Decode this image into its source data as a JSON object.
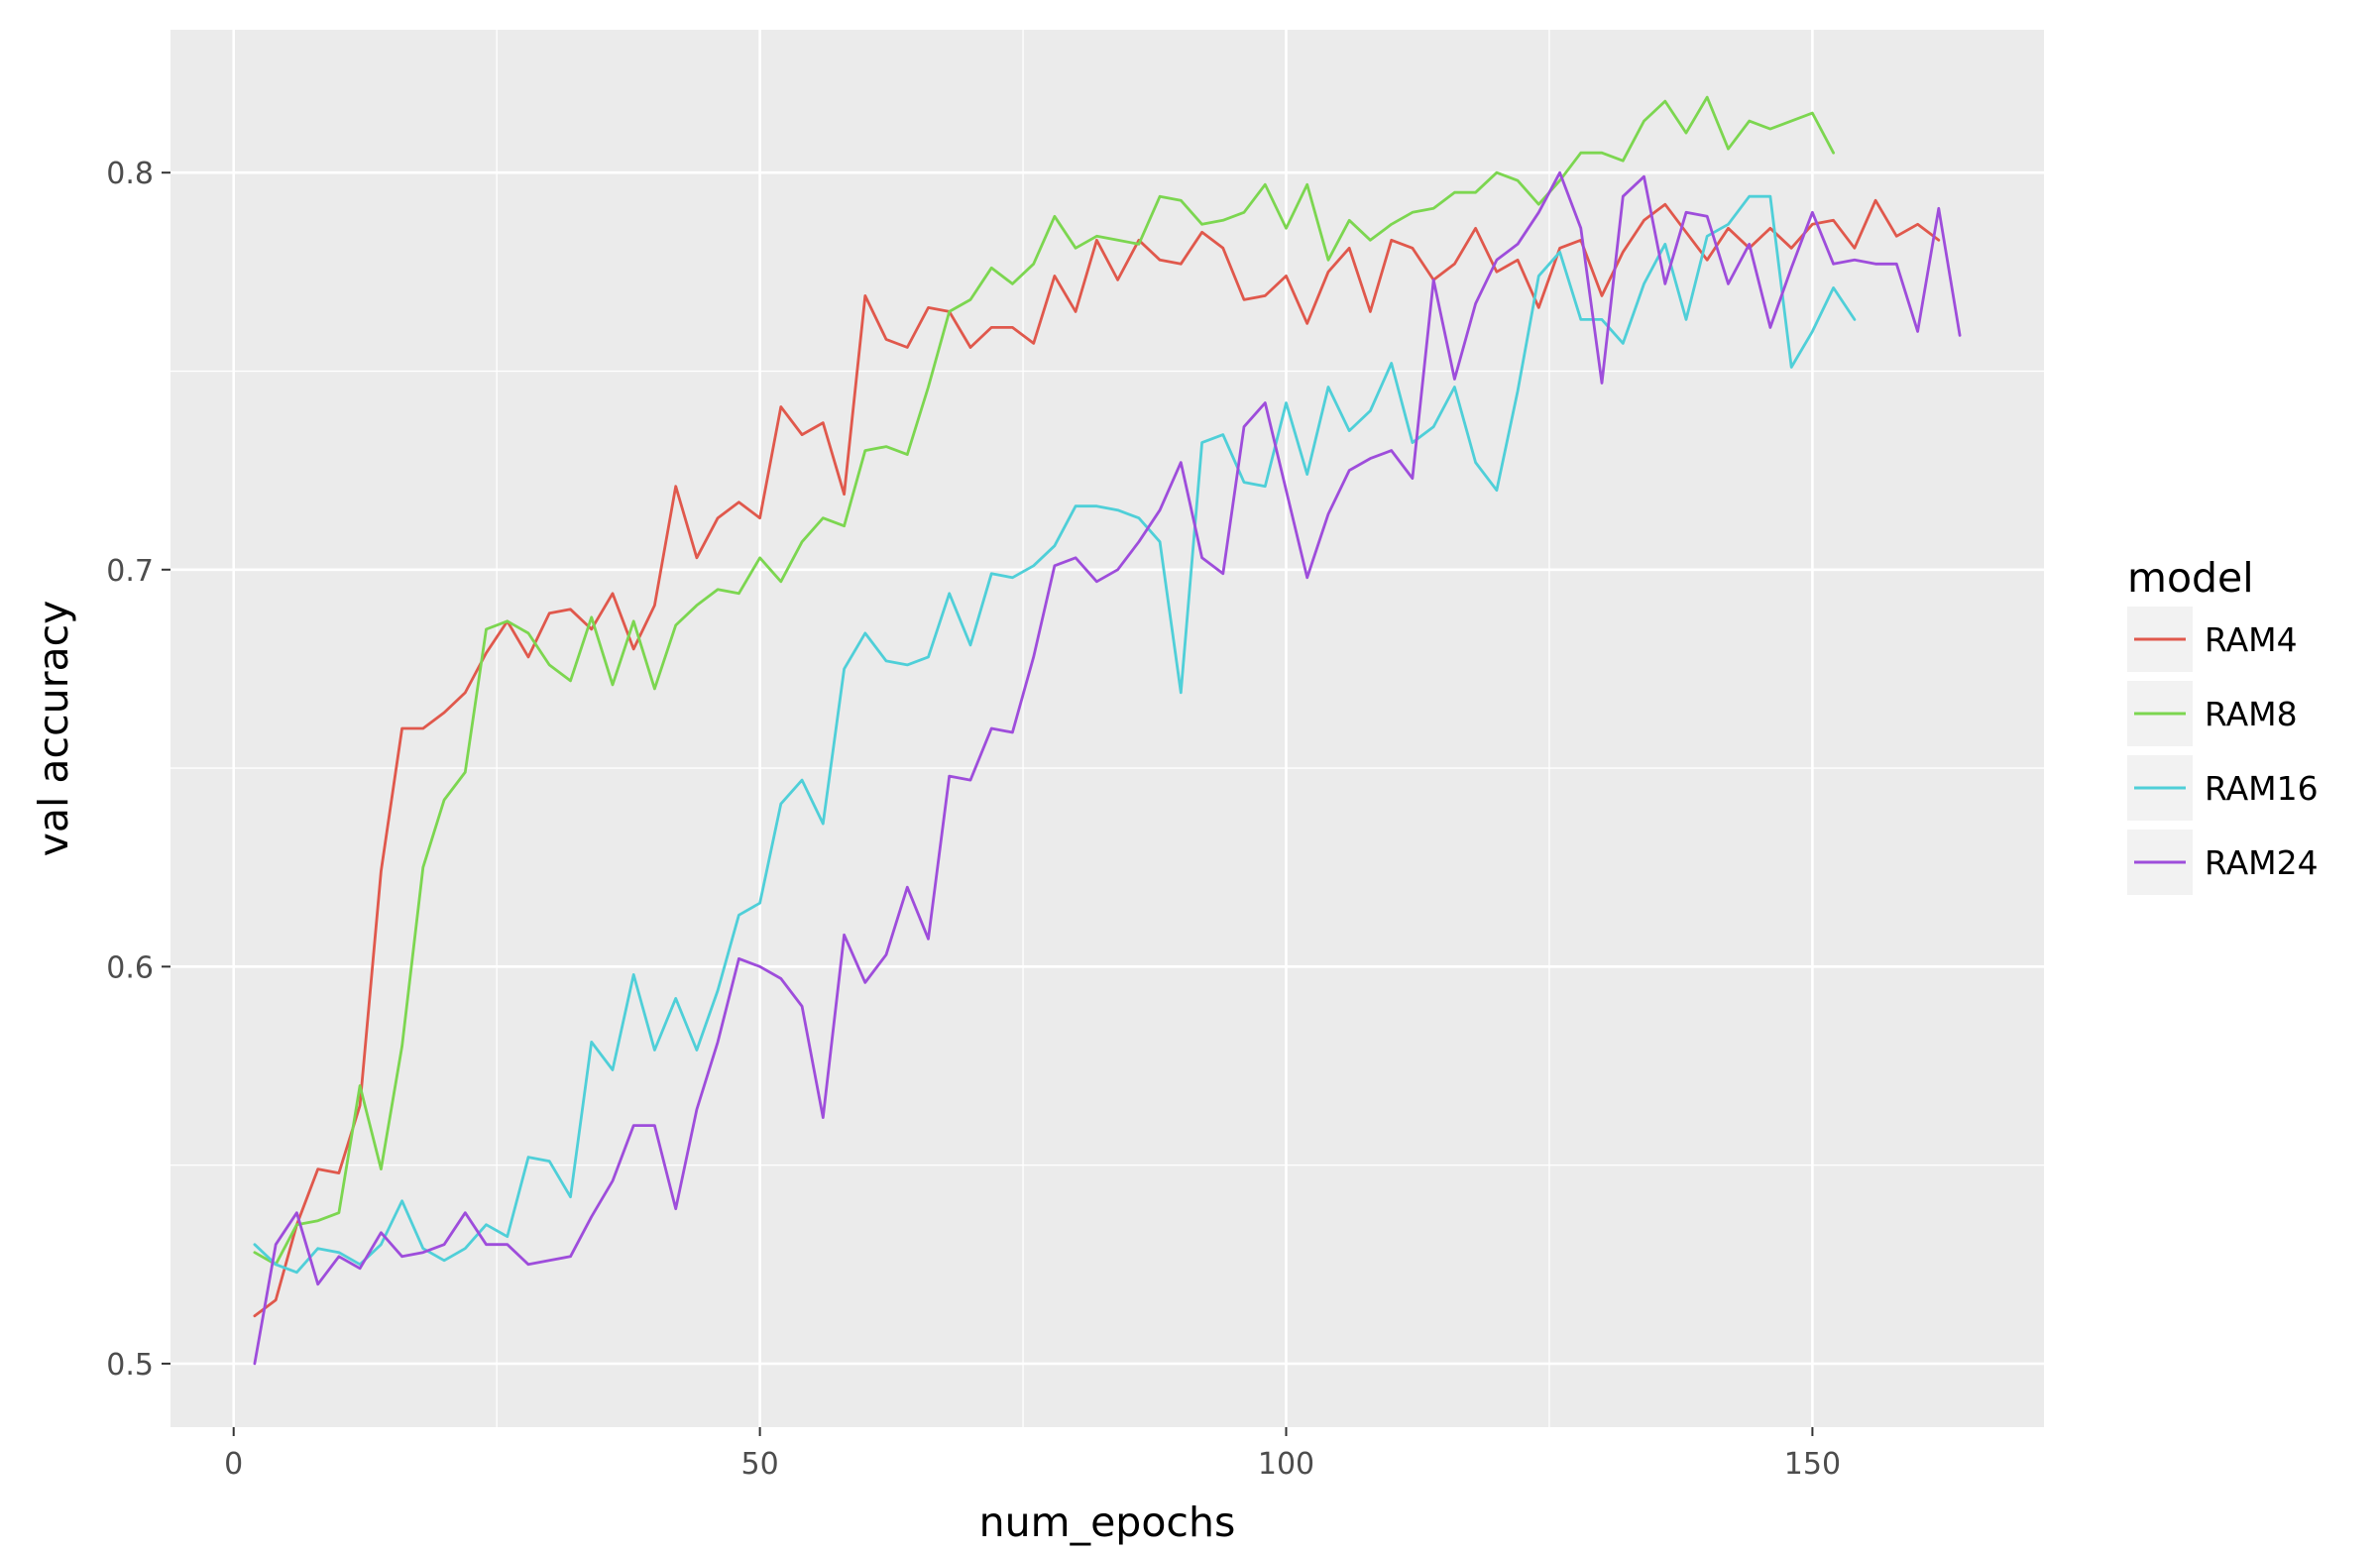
{
  "chart_data": {
    "type": "line",
    "xlabel": "num_epochs",
    "ylabel": "val accuracy",
    "xlim": [
      -6,
      172
    ],
    "ylim": [
      0.484,
      0.836
    ],
    "x_ticks": [
      0,
      50,
      100,
      150
    ],
    "y_ticks": [
      0.5,
      0.6,
      0.7,
      0.8
    ],
    "x_tick_labels": [
      "0",
      "50",
      "100",
      "150"
    ],
    "y_tick_labels": [
      "0.5",
      "0.6",
      "0.7",
      "0.8"
    ],
    "grid": true,
    "legend_title": "model",
    "legend_position": "right",
    "colors": {
      "panel_background": "#EBEBEB",
      "grid": "#FFFFFF",
      "RAM4": "#E0584C",
      "RAM8": "#7CD650",
      "RAM16": "#4FCFD8",
      "RAM24": "#9E4DDB"
    },
    "series": [
      {
        "name": "RAM4",
        "x": [
          2,
          4,
          6,
          8,
          10,
          12,
          14,
          16,
          18,
          20,
          22,
          24,
          26,
          28,
          30,
          32,
          34,
          36,
          38,
          40,
          42,
          44,
          46,
          48,
          50,
          52,
          54,
          56,
          58,
          60,
          62,
          64,
          66,
          68,
          70,
          72,
          74,
          76,
          78,
          80,
          82,
          84,
          86,
          88,
          90,
          92,
          94,
          96,
          98,
          100,
          102,
          104,
          106,
          108,
          110,
          112,
          114,
          116,
          118,
          120,
          122,
          124,
          126,
          128,
          130,
          132,
          134,
          136,
          138,
          140,
          142,
          144,
          146,
          148,
          150,
          152,
          154,
          156,
          158,
          160,
          162
        ],
        "values": [
          0.512,
          0.516,
          0.535,
          0.549,
          0.548,
          0.565,
          0.624,
          0.66,
          0.66,
          0.664,
          0.669,
          0.679,
          0.687,
          0.678,
          0.689,
          0.69,
          0.685,
          0.694,
          0.68,
          0.691,
          0.721,
          0.703,
          0.713,
          0.717,
          0.713,
          0.741,
          0.734,
          0.737,
          0.719,
          0.769,
          0.758,
          0.756,
          0.766,
          0.765,
          0.756,
          0.761,
          0.761,
          0.757,
          0.774,
          0.765,
          0.783,
          0.773,
          0.783,
          0.778,
          0.777,
          0.785,
          0.781,
          0.768,
          0.769,
          0.774,
          0.762,
          0.775,
          0.781,
          0.765,
          0.783,
          0.781,
          0.773,
          0.777,
          0.786,
          0.775,
          0.778,
          0.766,
          0.781,
          0.783,
          0.769,
          0.78,
          0.788,
          0.792,
          0.785,
          0.778,
          0.786,
          0.781,
          0.786,
          0.781,
          0.787,
          0.788,
          0.781,
          0.793,
          0.784,
          0.787,
          0.783
        ]
      },
      {
        "name": "RAM8",
        "x": [
          2,
          4,
          6,
          8,
          10,
          12,
          14,
          16,
          18,
          20,
          22,
          24,
          26,
          28,
          30,
          32,
          34,
          36,
          38,
          40,
          42,
          44,
          46,
          48,
          50,
          52,
          54,
          56,
          58,
          60,
          62,
          64,
          66,
          68,
          70,
          72,
          74,
          76,
          78,
          80,
          82,
          84,
          86,
          88,
          90,
          92,
          94,
          96,
          98,
          100,
          102,
          104,
          106,
          108,
          110,
          112,
          114,
          116,
          118,
          120,
          122,
          124,
          126,
          128,
          130,
          132,
          134,
          136,
          138,
          140,
          142,
          144,
          146,
          148,
          150,
          152
        ],
        "values": [
          0.528,
          0.525,
          0.535,
          0.536,
          0.538,
          0.57,
          0.549,
          0.58,
          0.625,
          0.642,
          0.649,
          0.685,
          0.687,
          0.684,
          0.676,
          0.672,
          0.688,
          0.671,
          0.687,
          0.67,
          0.686,
          0.691,
          0.695,
          0.694,
          0.703,
          0.697,
          0.707,
          0.713,
          0.711,
          0.73,
          0.731,
          0.729,
          0.746,
          0.765,
          0.768,
          0.776,
          0.772,
          0.777,
          0.789,
          0.781,
          0.784,
          0.783,
          0.782,
          0.794,
          0.793,
          0.787,
          0.788,
          0.79,
          0.797,
          0.786,
          0.797,
          0.778,
          0.788,
          0.783,
          0.787,
          0.79,
          0.791,
          0.795,
          0.795,
          0.8,
          0.798,
          0.792,
          0.798,
          0.805,
          0.805,
          0.803,
          0.813,
          0.818,
          0.81,
          0.819,
          0.806,
          0.813,
          0.811,
          0.813,
          0.815,
          0.805
        ]
      },
      {
        "name": "RAM16",
        "x": [
          2,
          4,
          6,
          8,
          10,
          12,
          14,
          16,
          18,
          20,
          22,
          24,
          26,
          28,
          30,
          32,
          34,
          36,
          38,
          40,
          42,
          44,
          46,
          48,
          50,
          52,
          54,
          56,
          58,
          60,
          62,
          64,
          66,
          68,
          70,
          72,
          74,
          76,
          78,
          80,
          82,
          84,
          86,
          88,
          90,
          92,
          94,
          96,
          98,
          100,
          102,
          104,
          106,
          108,
          110,
          112,
          114,
          116,
          118,
          120,
          122,
          124,
          126,
          128,
          130,
          132,
          134,
          136,
          138,
          140,
          142,
          144,
          146,
          148,
          150,
          152,
          154
        ],
        "values": [
          0.53,
          0.525,
          0.523,
          0.529,
          0.528,
          0.525,
          0.53,
          0.541,
          0.529,
          0.526,
          0.529,
          0.535,
          0.532,
          0.552,
          0.551,
          0.542,
          0.581,
          0.574,
          0.598,
          0.579,
          0.592,
          0.579,
          0.594,
          0.613,
          0.616,
          0.641,
          0.647,
          0.636,
          0.675,
          0.684,
          0.677,
          0.676,
          0.678,
          0.694,
          0.681,
          0.699,
          0.698,
          0.701,
          0.706,
          0.716,
          0.716,
          0.715,
          0.713,
          0.707,
          0.669,
          0.732,
          0.734,
          0.722,
          0.721,
          0.742,
          0.724,
          0.746,
          0.735,
          0.74,
          0.752,
          0.732,
          0.736,
          0.746,
          0.727,
          0.72,
          0.745,
          0.774,
          0.78,
          0.763,
          0.763,
          0.757,
          0.772,
          0.782,
          0.763,
          0.784,
          0.787,
          0.794,
          0.794,
          0.751,
          0.76,
          0.771,
          0.763
        ]
      },
      {
        "name": "RAM24",
        "x": [
          2,
          4,
          6,
          8,
          10,
          12,
          14,
          16,
          18,
          20,
          22,
          24,
          26,
          28,
          30,
          32,
          34,
          36,
          38,
          40,
          42,
          44,
          46,
          48,
          50,
          52,
          54,
          56,
          58,
          60,
          62,
          64,
          66,
          68,
          70,
          72,
          74,
          76,
          78,
          80,
          82,
          84,
          86,
          88,
          90,
          92,
          94,
          96,
          98,
          100,
          102,
          104,
          106,
          108,
          110,
          112,
          114,
          116,
          118,
          120,
          122,
          124,
          126,
          128,
          130,
          132,
          134,
          136,
          138,
          140,
          142,
          144,
          146,
          148,
          150,
          152,
          154,
          156,
          158,
          160,
          162,
          164
        ],
        "values": [
          0.5,
          0.53,
          0.538,
          0.52,
          0.527,
          0.524,
          0.533,
          0.527,
          0.528,
          0.53,
          0.538,
          0.53,
          0.53,
          0.525,
          0.526,
          0.527,
          0.537,
          0.546,
          0.56,
          0.56,
          0.539,
          0.564,
          0.581,
          0.602,
          0.6,
          0.597,
          0.59,
          0.562,
          0.608,
          0.596,
          0.603,
          0.62,
          0.607,
          0.648,
          0.647,
          0.66,
          0.659,
          0.678,
          0.701,
          0.703,
          0.697,
          0.7,
          0.707,
          0.715,
          0.727,
          0.703,
          0.699,
          0.736,
          0.742,
          0.72,
          0.698,
          0.714,
          0.725,
          0.728,
          0.73,
          0.723,
          0.773,
          0.748,
          0.767,
          0.778,
          0.782,
          0.79,
          0.8,
          0.786,
          0.747,
          0.794,
          0.799,
          0.772,
          0.79,
          0.789,
          0.772,
          0.782,
          0.761,
          0.776,
          0.79,
          0.777,
          0.778,
          0.777,
          0.777,
          0.76,
          0.791,
          0.759
        ]
      }
    ]
  }
}
